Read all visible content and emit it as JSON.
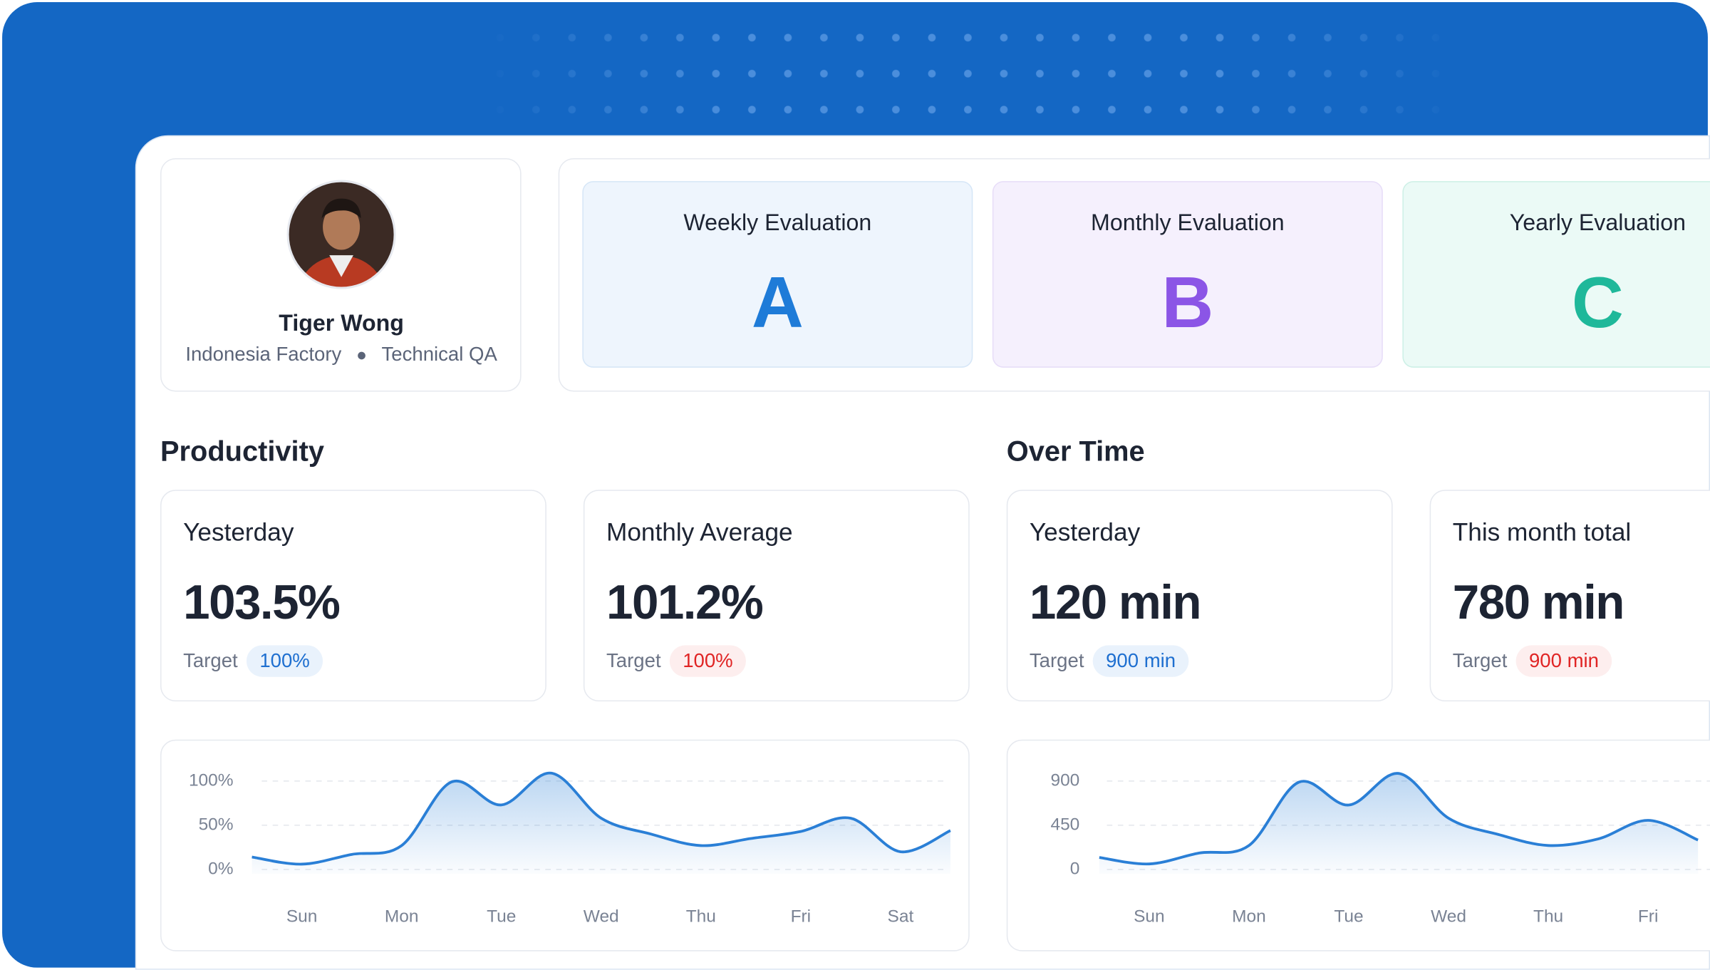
{
  "profile": {
    "name": "Tiger Wong",
    "location": "Indonesia Factory",
    "role": "Technical QA"
  },
  "evaluations": [
    {
      "title": "Weekly Evaluation",
      "grade": "A"
    },
    {
      "title": "Monthly Evaluation",
      "grade": "B"
    },
    {
      "title": "Yearly Evaluation",
      "grade": "C"
    }
  ],
  "productivity": {
    "title": "Productivity",
    "cards": [
      {
        "label": "Yesterday",
        "value": "103.5%",
        "target_label": "Target",
        "target": "100%"
      },
      {
        "label": "Monthly Average",
        "value": "101.2%",
        "target_label": "Target",
        "target": "100%"
      }
    ]
  },
  "overtime": {
    "title": "Over Time",
    "cards": [
      {
        "label": "Yesterday",
        "value": "120 min",
        "target_label": "Target",
        "target": "900 min"
      },
      {
        "label": "This month total",
        "value": "780 min",
        "target_label": "Target",
        "target": "900 min"
      }
    ]
  },
  "chart_data": [
    {
      "type": "area",
      "color": "#2a7fd6",
      "grid": true,
      "categories": [
        null,
        "Sun",
        null,
        "Mon",
        null,
        "Tue",
        null,
        "Wed",
        null,
        "Thu",
        null,
        "Fri",
        null,
        "Sat",
        null
      ],
      "values": [
        14,
        6,
        17,
        27,
        99,
        73,
        109,
        58,
        40,
        27,
        35,
        43,
        58,
        20,
        44
      ],
      "ylim": [
        0,
        100
      ],
      "yticks": [
        {
          "value": 0,
          "label": "0%"
        },
        {
          "value": 50,
          "label": "50%"
        },
        {
          "value": 100,
          "label": "100%"
        }
      ]
    },
    {
      "type": "area",
      "color": "#2a7fd6",
      "grid": true,
      "categories": [
        null,
        "Sun",
        null,
        "Mon",
        null,
        "Tue",
        null,
        "Wed",
        null,
        "Thu",
        null,
        "Fri",
        null
      ],
      "values": [
        122,
        56,
        167,
        244,
        889,
        656,
        978,
        522,
        356,
        244,
        311,
        500,
        300
      ],
      "ylim": [
        0,
        900
      ],
      "yticks": [
        0,
        450,
        900
      ]
    }
  ]
}
